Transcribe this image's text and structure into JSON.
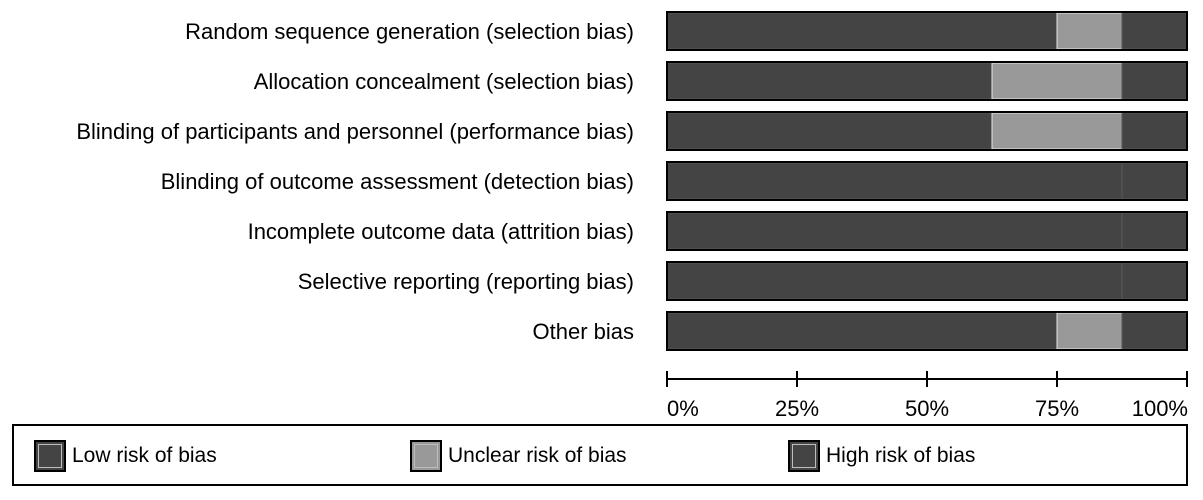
{
  "chart_data": {
    "type": "bar",
    "orientation": "horizontal",
    "stacked": true,
    "categories": [
      "Random sequence generation (selection bias)",
      "Allocation concealment (selection bias)",
      "Blinding of participants and personnel (performance bias)",
      "Blinding of outcome assessment (detection bias)",
      "Incomplete outcome data (attrition bias)",
      "Selective reporting (reporting bias)",
      "Other bias"
    ],
    "series": [
      {
        "name": "Low risk of bias",
        "color": "#444444",
        "values": [
          75,
          62.5,
          62.5,
          87.5,
          87.5,
          87.5,
          75
        ]
      },
      {
        "name": "Unclear risk of bias",
        "color": "#999999",
        "values": [
          12.5,
          25,
          25,
          0,
          0,
          0,
          12.5
        ]
      },
      {
        "name": "High risk of bias",
        "color": "#444444",
        "values": [
          12.5,
          12.5,
          12.5,
          12.5,
          12.5,
          12.5,
          12.5
        ]
      }
    ],
    "xlim": [
      0,
      100
    ],
    "xticks": [
      0,
      25,
      50,
      75,
      100
    ],
    "xtick_labels": [
      "0%",
      "25%",
      "50%",
      "75%",
      "100%"
    ],
    "grid": false,
    "legend_position": "bottom"
  }
}
